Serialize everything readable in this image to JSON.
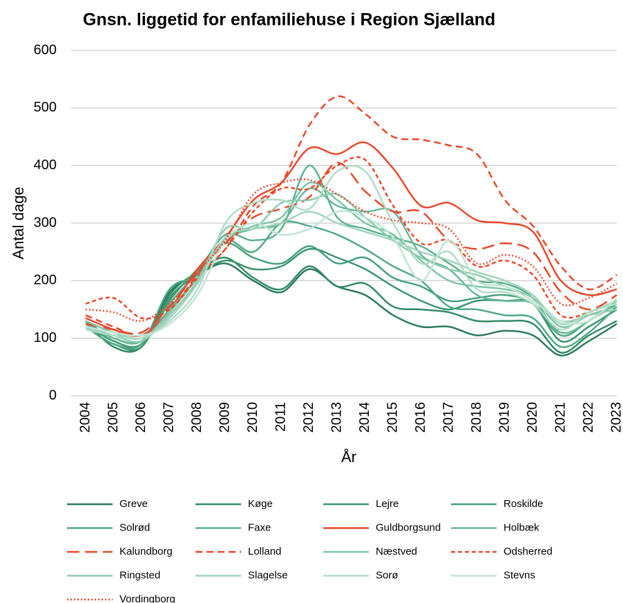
{
  "chart_data": {
    "type": "line",
    "title": "Gnsn. liggetid for enfamiliehuse i Region Sjælland",
    "x_label": "År",
    "y_label": "Antal dage",
    "categories": [
      "2004",
      "2005",
      "2006",
      "2007",
      "2008",
      "2009",
      "2010",
      "2011",
      "2012",
      "2013",
      "2014",
      "2015",
      "2016",
      "2017",
      "2018",
      "2019",
      "2020",
      "2021",
      "2022",
      "2023"
    ],
    "ylim": [
      0,
      600
    ],
    "yticks": [
      0,
      100,
      200,
      300,
      400,
      500,
      600
    ],
    "grid": true,
    "smooth": true,
    "legend": "bottom",
    "series": [
      {
        "name": "Greve",
        "color": "#2b7a5a",
        "dash": "solid",
        "values": [
          125,
          95,
          90,
          180,
          210,
          230,
          200,
          180,
          220,
          190,
          175,
          140,
          120,
          120,
          105,
          113,
          105,
          70,
          95,
          125
        ]
      },
      {
        "name": "Køge",
        "color": "#318a65",
        "dash": "solid",
        "values": [
          130,
          85,
          85,
          175,
          215,
          240,
          205,
          185,
          225,
          190,
          195,
          155,
          150,
          145,
          130,
          130,
          125,
          75,
          105,
          130
        ]
      },
      {
        "name": "Lejre",
        "color": "#3a9470",
        "dash": "solid",
        "values": [
          120,
          90,
          85,
          170,
          210,
          235,
          220,
          225,
          255,
          240,
          220,
          190,
          165,
          150,
          165,
          165,
          160,
          95,
          120,
          150
        ]
      },
      {
        "name": "Roskilde",
        "color": "#44a07a",
        "dash": "solid",
        "values": [
          125,
          95,
          90,
          165,
          220,
          265,
          240,
          230,
          260,
          230,
          240,
          205,
          190,
          165,
          170,
          175,
          160,
          105,
          130,
          160
        ]
      },
      {
        "name": "Solrød",
        "color": "#4fa985",
        "dash": "solid",
        "values": [
          120,
          90,
          90,
          185,
          210,
          270,
          250,
          300,
          295,
          280,
          255,
          225,
          200,
          155,
          150,
          140,
          135,
          85,
          110,
          155
        ]
      },
      {
        "name": "Faxe",
        "color": "#5cb18f",
        "dash": "solid",
        "values": [
          130,
          100,
          95,
          160,
          215,
          280,
          270,
          290,
          400,
          310,
          290,
          275,
          260,
          230,
          200,
          195,
          170,
          105,
          130,
          160
        ]
      },
      {
        "name": "Guldborgsund",
        "color": "#e8472a",
        "dash": "solid",
        "values": [
          135,
          115,
          105,
          150,
          220,
          275,
          340,
          370,
          430,
          420,
          440,
          395,
          330,
          335,
          305,
          300,
          285,
          200,
          175,
          185
        ]
      },
      {
        "name": "Holbæk",
        "color": "#67b898",
        "dash": "solid",
        "values": [
          125,
          100,
          95,
          150,
          205,
          270,
          290,
          300,
          360,
          330,
          320,
          320,
          245,
          220,
          175,
          165,
          160,
          110,
          130,
          165
        ]
      },
      {
        "name": "Kalundborg",
        "color": "#e8472a",
        "dash": "longdash",
        "values": [
          125,
          115,
          110,
          155,
          215,
          265,
          310,
          325,
          345,
          405,
          355,
          320,
          320,
          270,
          255,
          265,
          250,
          180,
          150,
          175
        ]
      },
      {
        "name": "Lolland",
        "color": "#e8472a",
        "dash": "dash",
        "values": [
          140,
          120,
          105,
          145,
          210,
          255,
          330,
          370,
          470,
          520,
          490,
          450,
          445,
          435,
          420,
          340,
          295,
          225,
          185,
          210
        ]
      },
      {
        "name": "Næstved",
        "color": "#7cc4a6",
        "dash": "solid",
        "values": [
          130,
          110,
          100,
          145,
          205,
          270,
          295,
          310,
          370,
          340,
          300,
          280,
          235,
          200,
          190,
          185,
          170,
          120,
          140,
          155
        ]
      },
      {
        "name": "Odsherred",
        "color": "#e8472a",
        "dash": "shortdash",
        "values": [
          160,
          170,
          135,
          150,
          205,
          255,
          320,
          360,
          360,
          400,
          410,
          330,
          265,
          270,
          225,
          235,
          210,
          140,
          145,
          165
        ]
      },
      {
        "name": "Ringsted",
        "color": "#8dccb0",
        "dash": "solid",
        "values": [
          120,
          105,
          95,
          140,
          200,
          290,
          290,
          335,
          340,
          350,
          310,
          270,
          240,
          220,
          210,
          190,
          170,
          130,
          140,
          150
        ]
      },
      {
        "name": "Slagelse",
        "color": "#9fd4bc",
        "dash": "solid",
        "values": [
          118,
          110,
          100,
          135,
          195,
          275,
          290,
          300,
          320,
          300,
          285,
          270,
          250,
          235,
          215,
          200,
          175,
          125,
          145,
          165
        ]
      },
      {
        "name": "Sorø",
        "color": "#b0dcc8",
        "dash": "solid",
        "values": [
          115,
          105,
          100,
          130,
          185,
          300,
          335,
          340,
          325,
          390,
          390,
          300,
          230,
          250,
          185,
          180,
          160,
          115,
          145,
          160
        ]
      },
      {
        "name": "Stevns",
        "color": "#c2e4d3",
        "dash": "solid",
        "values": [
          120,
          110,
          105,
          125,
          175,
          270,
          300,
          280,
          290,
          320,
          310,
          275,
          200,
          270,
          200,
          190,
          165,
          130,
          130,
          170
        ]
      },
      {
        "name": "Vordingborg",
        "color": "#e8472a",
        "dash": "dot",
        "values": [
          150,
          145,
          130,
          160,
          215,
          270,
          350,
          370,
          375,
          350,
          320,
          305,
          300,
          290,
          230,
          245,
          225,
          160,
          170,
          195
        ]
      }
    ]
  }
}
